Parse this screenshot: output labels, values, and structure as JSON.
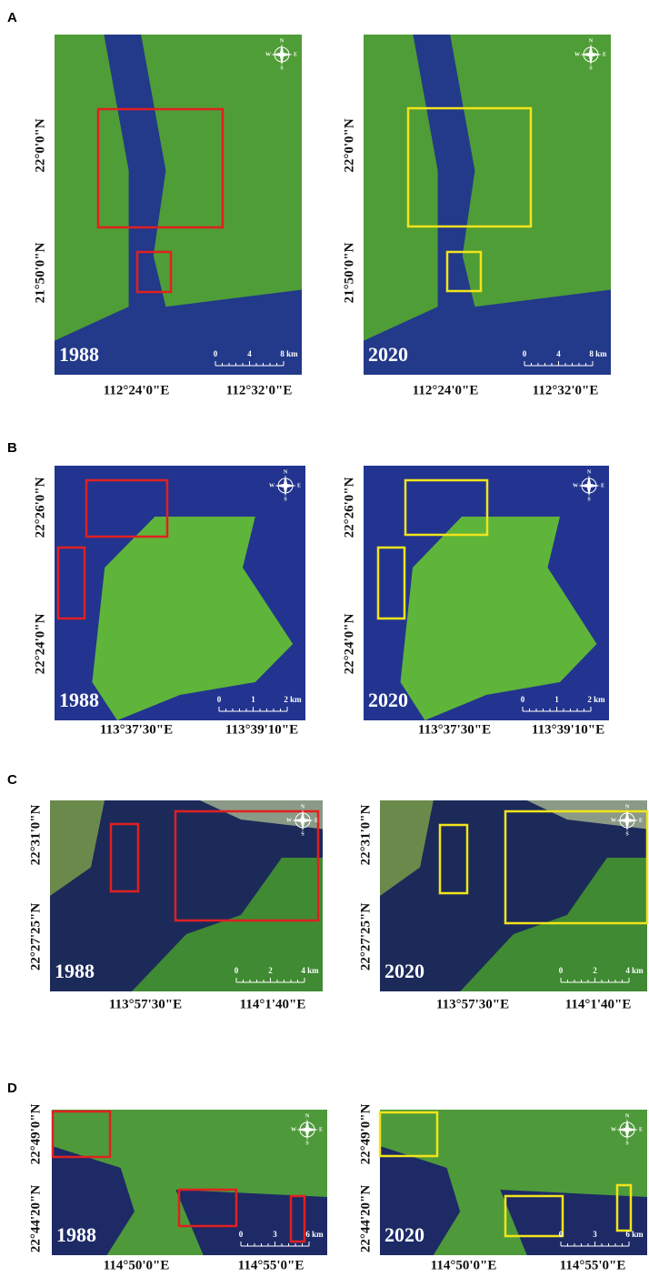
{
  "panels": [
    {
      "label": "A",
      "maps": [
        {
          "year": "1988",
          "lat": [
            "22°0'0\"N",
            "21°50'0\"N"
          ],
          "lon": [
            "112°24'0\"E",
            "112°32'0\"E"
          ],
          "scale": [
            "0",
            "4",
            "8 km"
          ],
          "box_color": "#e02020"
        },
        {
          "year": "2020",
          "lat": [
            "22°0'0\"N",
            "21°50'0\"N"
          ],
          "lon": [
            "112°24'0\"E",
            "112°32'0\"E"
          ],
          "scale": [
            "0",
            "4",
            "8 km"
          ],
          "box_color": "#f2e41a"
        }
      ]
    },
    {
      "label": "B",
      "maps": [
        {
          "year": "1988",
          "lat": [
            "22°26'0\"N",
            "22°24'0\"N"
          ],
          "lon": [
            "113°37'30\"E",
            "113°39'10\"E"
          ],
          "scale": [
            "0",
            "1",
            "2 km"
          ],
          "box_color": "#e02020"
        },
        {
          "year": "2020",
          "lat": [
            "22°26'0\"N",
            "22°24'0\"N"
          ],
          "lon": [
            "113°37'30\"E",
            "113°39'10\"E"
          ],
          "scale": [
            "0",
            "1",
            "2 km"
          ],
          "box_color": "#f2e41a"
        }
      ]
    },
    {
      "label": "C",
      "maps": [
        {
          "year": "1988",
          "lat": [
            "22°31'0\"N",
            "22°27'25\"N"
          ],
          "lon": [
            "113°57'30\"E",
            "114°1'40\"E"
          ],
          "scale": [
            "0",
            "2",
            "4 km"
          ],
          "box_color": "#e02020"
        },
        {
          "year": "2020",
          "lat": [
            "22°31'0\"N",
            "22°27'25\"N"
          ],
          "lon": [
            "113°57'30\"E",
            "114°1'40\"E"
          ],
          "scale": [
            "0",
            "2",
            "4 km"
          ],
          "box_color": "#f2e41a"
        }
      ]
    },
    {
      "label": "D",
      "maps": [
        {
          "year": "1988",
          "lat": [
            "22°49'0\"N",
            "22°44'20\"N"
          ],
          "lon": [
            "114°50'0\"E",
            "114°55'0\"E"
          ],
          "scale": [
            "0",
            "3",
            "6 km"
          ],
          "box_color": "#e02020"
        },
        {
          "year": "2020",
          "lat": [
            "22°49'0\"N",
            "22°44'20\"N"
          ],
          "lon": [
            "114°50'0\"E",
            "114°55'0\"E"
          ],
          "scale": [
            "0",
            "3",
            "6 km"
          ],
          "box_color": "#f2e41a"
        }
      ]
    }
  ],
  "compass": [
    "N",
    "E",
    "S",
    "W"
  ]
}
